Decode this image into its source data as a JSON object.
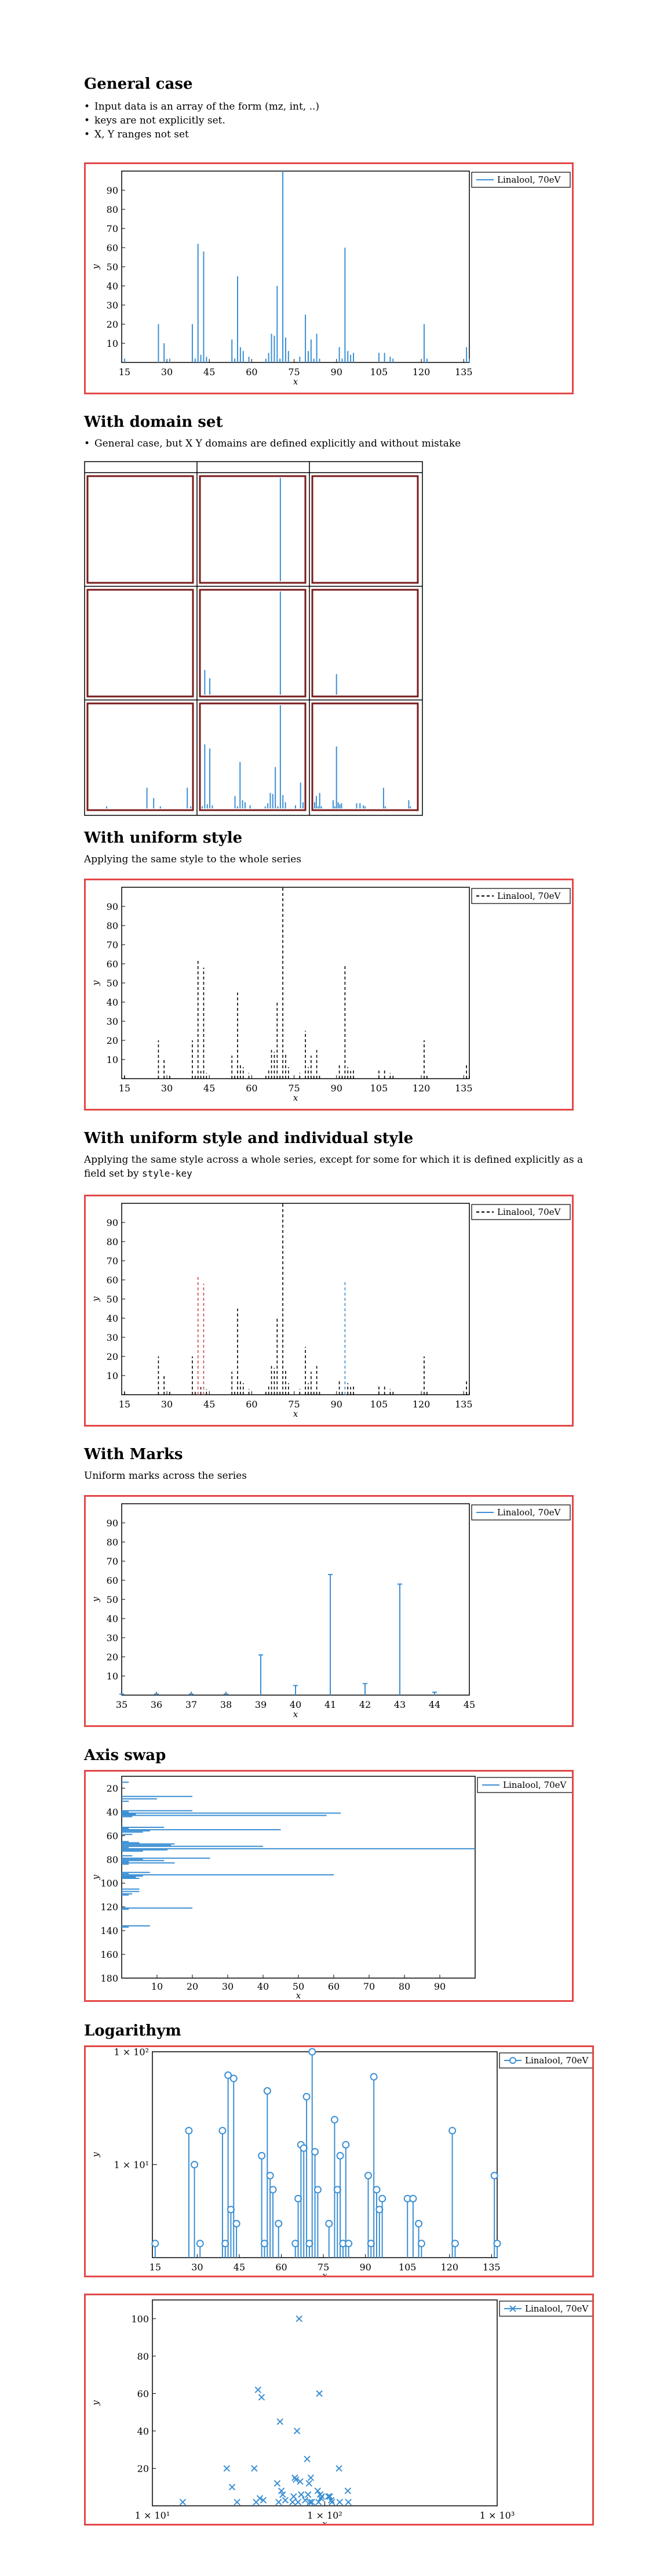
{
  "sections": {
    "general": {
      "title": "General case",
      "bullets": [
        "Input data is an array of the form (mz, int, ..)",
        "keys are not explicitly set.",
        "X, Y ranges not set"
      ]
    },
    "domain": {
      "title": "With domain set",
      "bullets": [
        "General case, but X Y domains are defined explicitly and without mistake"
      ]
    },
    "uniform": {
      "title": "With uniform style",
      "desc": "Applying the same style to the whole series"
    },
    "individual": {
      "title": "With uniform style and individual style",
      "desc_pre": "Applying the same style across a whole series, except for some for which it is defined explicitly as a field set by ",
      "desc_code": "style-key"
    },
    "marks": {
      "title": "With Marks",
      "desc": "Uniform marks across the series"
    },
    "swap": {
      "title": "Axis swap"
    },
    "log": {
      "title": "Logarithym"
    }
  },
  "colors": {
    "frame": "#e34848",
    "series": "#3b8fd4",
    "dark": "#7a1b1b",
    "red_series": "#d64545"
  },
  "legend": "Linalool, 70eV",
  "chart_data": [
    {
      "id": "general",
      "type": "bar",
      "title": "",
      "xlabel": "x",
      "ylabel": "y",
      "xlim": [
        14,
        137
      ],
      "ylim": [
        0,
        100
      ],
      "xticks": [
        15,
        30,
        45,
        60,
        75,
        90,
        105,
        120,
        135
      ],
      "yticks": [
        10,
        20,
        30,
        40,
        50,
        60,
        70,
        80,
        90
      ],
      "series": [
        {
          "name": "Linalool, 70eV",
          "x": [
            15,
            27,
            29,
            31,
            39,
            40,
            41,
            42,
            43,
            44,
            53,
            54,
            55,
            56,
            57,
            59,
            65,
            66,
            67,
            68,
            69,
            70,
            71,
            72,
            73,
            77,
            79,
            80,
            81,
            82,
            83,
            84,
            91,
            92,
            93,
            94,
            95,
            96,
            105,
            107,
            109,
            110,
            121,
            122,
            136,
            137
          ],
          "values": [
            2,
            20,
            10,
            2,
            20,
            2,
            62,
            4,
            58,
            3,
            12,
            2,
            45,
            8,
            6,
            3,
            2,
            5,
            15,
            14,
            40,
            2,
            100,
            13,
            6,
            3,
            25,
            6,
            12,
            2,
            15,
            2,
            8,
            2,
            60,
            6,
            4,
            5,
            5,
            5,
            3,
            2,
            20,
            2,
            8,
            2
          ]
        }
      ]
    },
    {
      "id": "uniform",
      "type": "bar",
      "xlabel": "x",
      "ylabel": "y",
      "xlim": [
        14,
        137
      ],
      "ylim": [
        0,
        100
      ],
      "xticks": [
        15,
        30,
        45,
        60,
        75,
        90,
        105,
        120,
        135
      ],
      "yticks": [
        10,
        20,
        30,
        40,
        50,
        60,
        70,
        80,
        90
      ],
      "series": [
        {
          "name": "Linalool, 70eV"
        }
      ]
    },
    {
      "id": "individual",
      "type": "bar",
      "xlabel": "x",
      "ylabel": "y",
      "xlim": [
        14,
        137
      ],
      "ylim": [
        0,
        100
      ],
      "xticks": [
        15,
        30,
        45,
        60,
        75,
        90,
        105,
        120,
        135
      ],
      "yticks": [
        10,
        20,
        30,
        40,
        50,
        60,
        70,
        80,
        90
      ],
      "highlight_red": [
        41,
        43
      ],
      "highlight_blue": [
        93
      ]
    },
    {
      "id": "marks",
      "type": "bar",
      "xlabel": "x",
      "ylabel": "y",
      "xlim": [
        35,
        45
      ],
      "ylim": [
        0,
        100
      ],
      "xticks": [
        35,
        36,
        37,
        38,
        39,
        40,
        41,
        42,
        43,
        44,
        45
      ],
      "yticks": [
        10,
        20,
        30,
        40,
        50,
        60,
        70,
        80,
        90
      ]
    },
    {
      "id": "swap",
      "type": "bar",
      "orientation": "horizontal",
      "xlabel": "x",
      "ylabel": "y",
      "xlim": [
        0,
        100
      ],
      "ylim": [
        10,
        180
      ],
      "xticks": [
        10,
        20,
        30,
        40,
        50,
        60,
        70,
        80,
        90
      ],
      "yticks": [
        20,
        40,
        60,
        80,
        100,
        120,
        140,
        160,
        180
      ]
    },
    {
      "id": "log1",
      "type": "scatter",
      "ylog": true,
      "xlabel": "x",
      "ylabel": "y",
      "xlim": [
        14,
        137
      ],
      "xticks": [
        15,
        30,
        45,
        60,
        75,
        90,
        105,
        120,
        135
      ],
      "ytick_labels": [
        "1 × 10¹",
        "1 × 10²"
      ]
    },
    {
      "id": "log2",
      "type": "scatter",
      "xlog": true,
      "xlabel": "x",
      "ylabel": "y",
      "ylim": [
        0,
        100
      ],
      "yticks": [
        20,
        40,
        60,
        80,
        100
      ],
      "xtick_labels": [
        "1 × 10¹",
        "1 × 10²",
        "1 × 10³"
      ]
    }
  ]
}
